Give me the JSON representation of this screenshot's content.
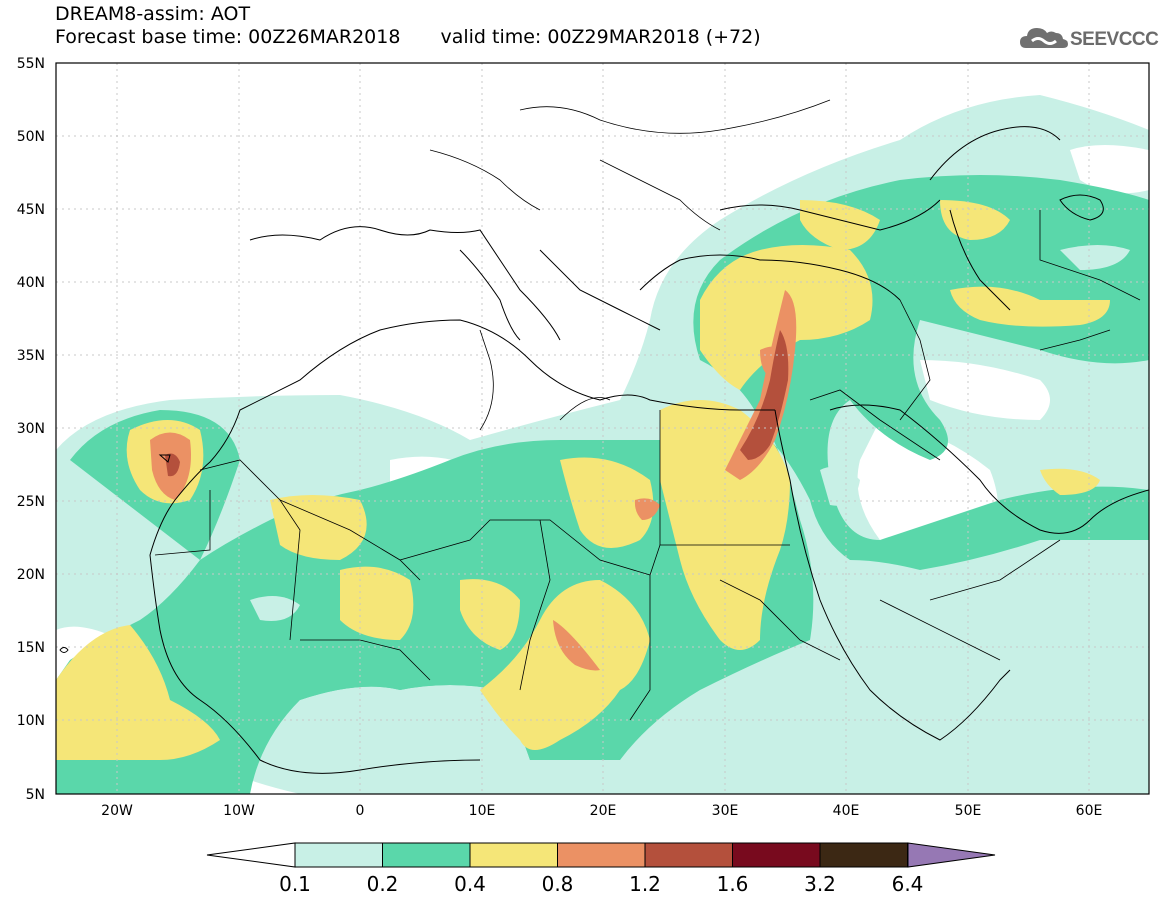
{
  "header": {
    "title": "DREAM8-assim: AOT",
    "base_time": "Forecast base time: 00Z26MAR2018",
    "valid_time": "valid time: 00Z29MAR2018 (+72)"
  },
  "logo": {
    "text": "SEEVCCC",
    "icon": "cloud-icon"
  },
  "map": {
    "lat_labels": [
      "55N",
      "50N",
      "45N",
      "40N",
      "35N",
      "30N",
      "25N",
      "20N",
      "15N",
      "10N",
      "5N"
    ],
    "lon_labels": [
      "20W",
      "10W",
      "0",
      "10E",
      "20E",
      "30E",
      "40E",
      "50E",
      "60E"
    ]
  },
  "colorbar": {
    "ticks": [
      "0.1",
      "0.2",
      "0.4",
      "0.8",
      "1.2",
      "1.6",
      "3.2",
      "6.4"
    ],
    "colors": [
      "#c8f0e6",
      "#5ad7aa",
      "#f5e678",
      "#eb9164",
      "#b4503c",
      "#780a1e",
      "#3c2814",
      "#9678b4"
    ]
  }
}
